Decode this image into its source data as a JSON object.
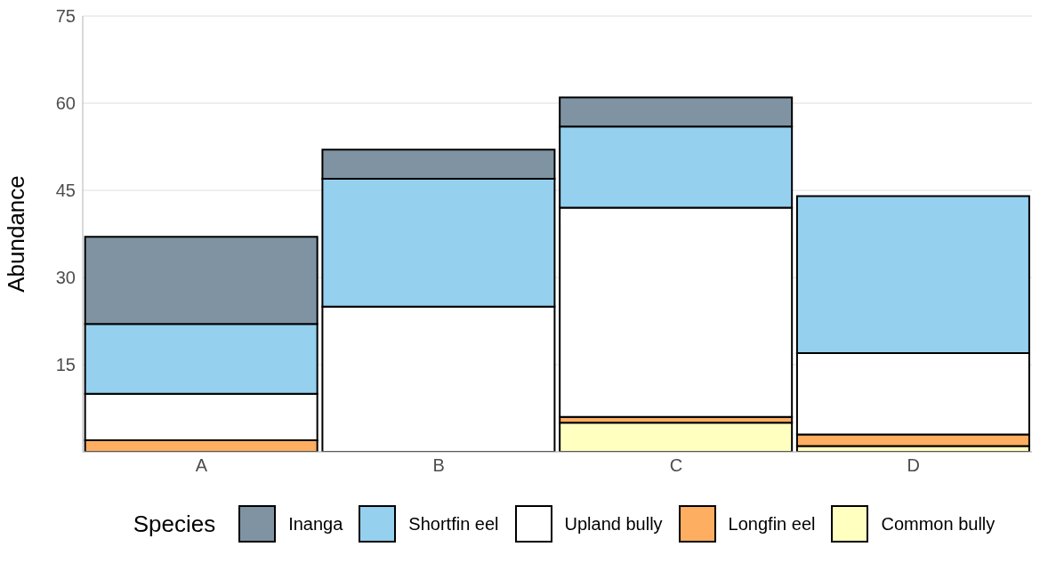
{
  "chart_data": {
    "type": "bar",
    "stacked": true,
    "ylabel": "Abundance",
    "legend_title": "Species",
    "categories": [
      "A",
      "B",
      "C",
      "D"
    ],
    "series": [
      {
        "name": "Common bully",
        "color": "#ffffbf",
        "values": [
          0,
          0,
          5,
          1
        ]
      },
      {
        "name": "Longfin eel",
        "color": "#fdae61",
        "values": [
          2,
          0,
          1,
          2
        ]
      },
      {
        "name": "Upland bully",
        "color": "#ffffff",
        "values": [
          8,
          25,
          36,
          14
        ]
      },
      {
        "name": "Shortfin eel",
        "color": "#95d0ee",
        "values": [
          12,
          22,
          14,
          27
        ]
      },
      {
        "name": "Inanga",
        "color": "#7f93a2",
        "values": [
          15,
          5,
          5,
          0
        ]
      }
    ],
    "ylim": [
      0,
      75
    ],
    "yticks": [
      15,
      30,
      45,
      60,
      75
    ],
    "grid": "y",
    "legend": "bottom"
  }
}
